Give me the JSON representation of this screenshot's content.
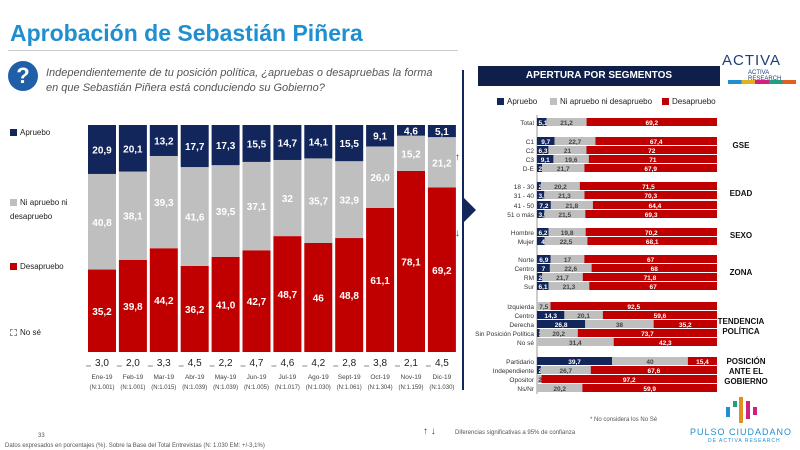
{
  "title": "Aprobación de Sebastián Piñera",
  "question": "Independientemente de tu posición política, ¿apruebas o desapruebas la forma en que Sebastián Piñera está conduciendo su Gobierno?",
  "question_icon": "question-mark-icon",
  "colors": {
    "apruebo": "#13265c",
    "ni": "#bfbfbf",
    "desaprueba": "#c00000",
    "title": "#1f8fd0"
  },
  "legend_left": [
    "Apruebo",
    "Ni apruebo ni desapruebo",
    "Desapruebo",
    "No sé"
  ],
  "legend_right": [
    "Apruebo",
    "Ni apruebo ni desapruebo",
    "Desapruebo"
  ],
  "panel_title": "APERTURA POR SEGMENTOS",
  "groups": [
    "GSE",
    "EDAD",
    "SEXO",
    "ZONA",
    "TENDENCIA POLÍTICA",
    "POSICIÓN ANTE EL GOBIERNO"
  ],
  "footnote_nose": "* No considera los No Sé",
  "footnote_sig": "Diferencias significativas a 95% de confianza",
  "footnote_base": "Datos expresados en porcentajes (%). Sobre la Base del Total Entrevistas (N: 1.030 EM: +/-3,1%)",
  "page_number": "33",
  "logo_top": "ACTIVA RESEARCH",
  "logo_bottom": "PULSO CIUDADANO",
  "logo_bottom_sub": "DE ACTIVA RESEARCH",
  "chart_data": [
    {
      "type": "bar",
      "stacked": true,
      "title": "Aprobación mensual",
      "categories": [
        "Ene-19",
        "Feb-19",
        "Mar-19",
        "Abr-19",
        "May-19",
        "Jun-19",
        "Jul-19",
        "Ago-19",
        "Sept-19",
        "Oct-19",
        "Nov-19",
        "Dic-19"
      ],
      "n": [
        "(N:1.001)",
        "(N:1.001)",
        "(N:1.015)",
        "(N:1.039)",
        "(N:1.039)",
        "(N:1.005)",
        "(N:1.017)",
        "(N:1.030)",
        "(N:1.061)",
        "(N:1.304)",
        "(N:1.159)",
        "(N:1.030)"
      ],
      "series": [
        {
          "name": "Apruebo",
          "values": [
            20.9,
            20.1,
            13.2,
            17.7,
            17.3,
            15.5,
            14.7,
            14.1,
            15.5,
            9.1,
            4.6,
            5.1
          ],
          "labels": [
            "20,9",
            "20,1",
            "13,2",
            "17,7",
            "17,3",
            "15,5",
            "14,7",
            "14,1",
            "15,5",
            "9,1",
            "4,6",
            "5,1"
          ]
        },
        {
          "name": "Ni apruebo ni desapruebo",
          "values": [
            40.8,
            38.1,
            39.3,
            41.6,
            39.5,
            37.1,
            32,
            35.7,
            32.9,
            26.0,
            15.2,
            21.2
          ],
          "labels": [
            "40,8",
            "38,1",
            "39,3",
            "41,6",
            "39,5",
            "37,1",
            "32",
            "35,7",
            "32,9",
            "26,0",
            "15,2",
            "21,2"
          ]
        },
        {
          "name": "Desapruebo",
          "values": [
            35.2,
            39.8,
            44.2,
            36.2,
            41.0,
            42.7,
            48.7,
            46,
            48.8,
            61.1,
            78.1,
            69.2
          ],
          "labels": [
            "35,2",
            "39,8",
            "44,2",
            "36,2",
            "41,0",
            "42,7",
            "48,7",
            "46",
            "48,8",
            "61,1",
            "78,1",
            "69,2"
          ]
        },
        {
          "name": "No sé",
          "values": [
            3.0,
            2.0,
            3.3,
            4.5,
            2.2,
            4.7,
            4.6,
            4.2,
            2.8,
            3.8,
            2.1,
            4.5
          ],
          "labels": [
            "3,0",
            "2,0",
            "3,3",
            "4,5",
            "2,2",
            "4,7",
            "4,6",
            "4,2",
            "2,8",
            "3,8",
            "2,1",
            "4,5"
          ]
        }
      ],
      "annotations": [
        {
          "category": "Dic-19",
          "series": "Ni apruebo ni desapruebo",
          "mark": "↑"
        },
        {
          "category": "Dic-19",
          "series": "Desapruebo",
          "mark": "↓"
        }
      ]
    },
    {
      "type": "bar",
      "stacked": true,
      "orientation": "horizontal",
      "title": "APERTURA POR SEGMENTOS",
      "rows": [
        {
          "label": "Total",
          "group": null,
          "v": [
            5.1,
            21.2,
            69.2
          ],
          "t": [
            "5,1",
            "21,2",
            "69,2"
          ]
        },
        {
          "label": "C1",
          "group": "GSE",
          "v": [
            9.7,
            22.7,
            67.4
          ],
          "t": [
            "9,7",
            "22,7",
            "67,4"
          ]
        },
        {
          "label": "C2",
          "group": "GSE",
          "v": [
            6.3,
            21,
            72
          ],
          "t": [
            "6,3",
            "21",
            "72"
          ]
        },
        {
          "label": "C3",
          "group": "GSE",
          "v": [
            9.1,
            19.6,
            71
          ],
          "t": [
            "9,1",
            "19,6",
            "71"
          ]
        },
        {
          "label": "D-E",
          "group": "GSE",
          "v": [
            2.6,
            21.7,
            67.9
          ],
          "t": [
            "2,6",
            "21,7",
            "67,9"
          ]
        },
        {
          "label": "18 - 30",
          "group": "EDAD",
          "v": [
            2.1,
            20.2,
            71.5
          ],
          "t": [
            "2,1",
            "20,2",
            "71,5"
          ]
        },
        {
          "label": "31 - 40",
          "group": "EDAD",
          "v": [
            3.9,
            21.3,
            70.3
          ],
          "t": [
            "3,9",
            "21,3",
            "70,3"
          ]
        },
        {
          "label": "41 - 50",
          "group": "EDAD",
          "v": [
            7.2,
            21.8,
            64.4
          ],
          "t": [
            "7,2",
            "21,8",
            "64,4"
          ]
        },
        {
          "label": "51 o más",
          "group": "EDAD",
          "v": [
            3.9,
            21.5,
            69.3
          ],
          "t": [
            "3,9",
            "21,5",
            "69,3"
          ]
        },
        {
          "label": "Hombre",
          "group": "SEXO",
          "v": [
            6.2,
            19.8,
            70.2
          ],
          "t": [
            "6,2",
            "19,8",
            "70,2"
          ]
        },
        {
          "label": "Mujer",
          "group": "SEXO",
          "v": [
            4,
            22.5,
            68.1
          ],
          "t": [
            "4",
            "22,5",
            "68,1"
          ]
        },
        {
          "label": "Norte",
          "group": "ZONA",
          "v": [
            6.9,
            17,
            67
          ],
          "t": [
            "6,9",
            "17",
            "67"
          ]
        },
        {
          "label": "Centro",
          "group": "ZONA",
          "v": [
            7,
            22.6,
            68
          ],
          "t": [
            "7",
            "22,6",
            "68"
          ]
        },
        {
          "label": "RM",
          "group": "ZONA",
          "v": [
            2.8,
            21.7,
            71.8
          ],
          "t": [
            "2,8",
            "21,7",
            "71,8"
          ]
        },
        {
          "label": "Sur",
          "group": "ZONA",
          "v": [
            6.1,
            21.3,
            67
          ],
          "t": [
            "6,1",
            "21,3",
            "67"
          ]
        },
        {
          "label": "Izquierda",
          "group": "TENDENCIA POLÍTICA",
          "v": [
            0,
            7.5,
            92.5
          ],
          "t": [
            "",
            "7,5",
            "92,5"
          ]
        },
        {
          "label": "Centro",
          "group": "TENDENCIA POLÍTICA",
          "v": [
            14.3,
            20.1,
            59.6
          ],
          "t": [
            "14,3",
            "20,1",
            "59,6"
          ]
        },
        {
          "label": "Derecha",
          "group": "TENDENCIA POLÍTICA",
          "v": [
            26.8,
            38,
            35.2
          ],
          "t": [
            "26,8",
            "38",
            "35,2"
          ]
        },
        {
          "label": "Sin Posición Política",
          "group": "TENDENCIA POLÍTICA",
          "v": [
            1.4,
            20.2,
            73.7
          ],
          "t": [
            "1,4",
            "20,2",
            "73,7"
          ]
        },
        {
          "label": "No sé",
          "group": "TENDENCIA POLÍTICA",
          "v": [
            0,
            31.4,
            42.3
          ],
          "t": [
            "",
            "31,4",
            "42,3"
          ]
        },
        {
          "label": "Partidario",
          "group": "POSICIÓN ANTE EL GOBIERNO",
          "v": [
            39.7,
            40,
            15.4
          ],
          "t": [
            "39,7",
            "40",
            "15,4"
          ]
        },
        {
          "label": "Independiente",
          "group": "POSICIÓN ANTE EL GOBIERNO",
          "v": [
            2.1,
            26.7,
            67.6
          ],
          "t": [
            "2,1",
            "26,7",
            "67,6"
          ]
        },
        {
          "label": "Opositor",
          "group": "POSICIÓN ANTE EL GOBIERNO",
          "v": [
            0,
            2.5,
            97.2
          ],
          "t": [
            "",
            "2,5",
            "97,2"
          ]
        },
        {
          "label": "Ns/Nr",
          "group": "POSICIÓN ANTE EL GOBIERNO",
          "v": [
            0,
            20.2,
            59.9
          ],
          "t": [
            "",
            "20,2",
            "59,9"
          ]
        }
      ]
    }
  ]
}
